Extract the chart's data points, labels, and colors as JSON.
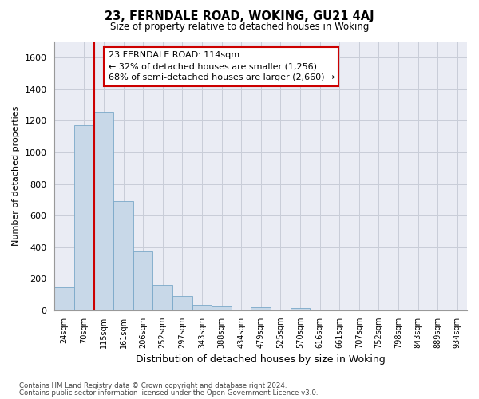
{
  "title": "23, FERNDALE ROAD, WOKING, GU21 4AJ",
  "subtitle": "Size of property relative to detached houses in Woking",
  "xlabel": "Distribution of detached houses by size in Woking",
  "ylabel": "Number of detached properties",
  "bar_color": "#c8d8e8",
  "bar_edge_color": "#7aa8c8",
  "categories": [
    "24sqm",
    "70sqm",
    "115sqm",
    "161sqm",
    "206sqm",
    "252sqm",
    "297sqm",
    "343sqm",
    "388sqm",
    "434sqm",
    "479sqm",
    "525sqm",
    "570sqm",
    "616sqm",
    "661sqm",
    "707sqm",
    "752sqm",
    "798sqm",
    "843sqm",
    "889sqm",
    "934sqm"
  ],
  "values": [
    148,
    1170,
    1260,
    690,
    375,
    162,
    90,
    38,
    25,
    0,
    18,
    0,
    14,
    0,
    0,
    0,
    0,
    0,
    0,
    0,
    0
  ],
  "ylim": [
    0,
    1700
  ],
  "yticks": [
    0,
    200,
    400,
    600,
    800,
    1000,
    1200,
    1400,
    1600
  ],
  "property_line_x": 1.5,
  "annotation_text": "23 FERNDALE ROAD: 114sqm\n← 32% of detached houses are smaller (1,256)\n68% of semi-detached houses are larger (2,660) →",
  "annotation_box_color": "#cc0000",
  "grid_color": "#c8cdd8",
  "background_color": "#eaecf4",
  "footer_line1": "Contains HM Land Registry data © Crown copyright and database right 2024.",
  "footer_line2": "Contains public sector information licensed under the Open Government Licence v3.0."
}
